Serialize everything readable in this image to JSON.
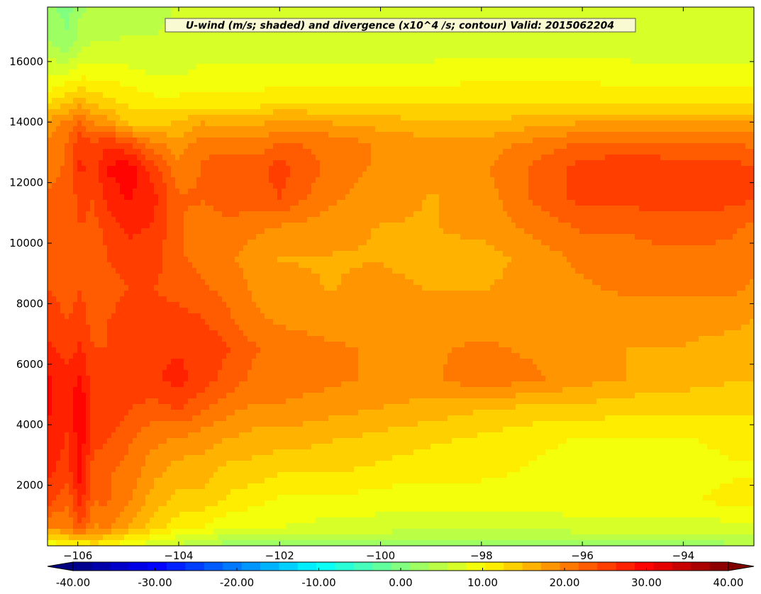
{
  "chart_data": {
    "type": "heatmap",
    "title": "U-wind (m/s; shaded) and divergence (x10^4 /s; contour) Valid: 2015062204",
    "x_range": [
      -106.6,
      -92.6
    ],
    "y_range": [
      0,
      17800
    ],
    "x_ticks": [
      -106,
      -104,
      -102,
      -100,
      -98,
      -96,
      -94
    ],
    "x_tick_labels": [
      "−106",
      "−104",
      "−102",
      "−100",
      "−98",
      "−96",
      "−94"
    ],
    "y_ticks": [
      2000,
      4000,
      6000,
      8000,
      10000,
      12000,
      14000,
      16000
    ],
    "y_tick_labels": [
      "2000",
      "4000",
      "6000",
      "8000",
      "10000",
      "12000",
      "14000",
      "16000"
    ],
    "colorbar": {
      "min": -40,
      "max": 40,
      "levels": 35,
      "extend": "both",
      "ticks": [
        -40,
        -30,
        -20,
        -10,
        0,
        10,
        20,
        30,
        40
      ],
      "tick_labels": [
        "-40.00",
        "-30.00",
        "-20.00",
        "-10.00",
        "0.00",
        "10.00",
        "20.00",
        "30.00",
        "40.00"
      ],
      "colormap": "jet"
    },
    "field_x": [
      -106.6,
      -106.2,
      -105.95,
      -105.7,
      -105.4,
      -105.0,
      -104.5,
      -104.0,
      -103.5,
      -103.0,
      -102.5,
      -102.0,
      -101.0,
      -100.0,
      -99.0,
      -98.0,
      -97.0,
      -96.0,
      -95.0,
      -94.0,
      -93.0,
      -92.6
    ],
    "field_y": [
      0,
      600,
      1500,
      2500,
      3500,
      4500,
      5500,
      6500,
      7500,
      8500,
      9500,
      10500,
      11500,
      12500,
      13300,
      14000,
      14700,
      15500,
      16500,
      17800
    ],
    "field_u": [
      [
        7,
        10,
        9,
        12,
        10,
        8,
        6,
        5,
        4,
        2,
        1,
        1,
        2,
        2,
        2,
        2,
        2,
        2,
        2,
        2,
        3,
        3
      ],
      [
        19,
        20,
        24,
        19,
        20,
        17,
        14,
        11,
        10,
        8,
        8,
        8,
        7,
        7,
        6,
        6,
        6,
        7,
        7,
        7,
        7,
        7
      ],
      [
        25,
        22,
        27,
        22,
        22,
        20,
        16,
        14,
        14,
        12,
        11,
        10,
        10,
        9,
        9,
        9,
        9,
        10,
        10,
        10,
        11,
        11
      ],
      [
        27,
        25,
        30,
        23,
        22,
        21,
        18,
        16,
        16,
        14,
        14,
        13,
        13,
        12,
        11,
        11,
        10,
        9,
        9,
        9,
        10,
        10
      ],
      [
        28,
        26,
        30,
        25,
        24,
        22,
        20,
        19,
        18,
        17,
        16,
        16,
        15,
        14,
        13,
        12,
        11,
        10,
        10,
        10,
        11,
        11
      ],
      [
        29,
        27,
        31,
        26,
        26,
        24,
        23,
        24,
        22,
        20,
        19,
        19,
        18,
        17,
        16,
        15,
        14,
        14,
        13,
        13,
        13,
        13
      ],
      [
        29,
        27,
        29,
        25,
        25,
        25,
        26,
        27,
        25,
        23,
        21,
        21,
        20,
        19,
        19,
        21,
        20,
        18,
        17,
        16,
        15,
        15
      ],
      [
        27,
        25,
        27,
        24,
        24,
        25,
        26,
        26,
        26,
        24,
        22,
        21,
        20,
        19,
        19,
        20,
        19,
        18,
        17,
        17,
        16,
        16
      ],
      [
        25,
        24,
        25,
        23,
        24,
        25,
        25,
        25,
        24,
        22,
        20,
        19,
        18,
        18,
        18,
        18,
        18,
        18,
        18,
        18,
        18,
        17
      ],
      [
        24,
        23,
        24,
        23,
        23,
        24,
        24,
        23,
        22,
        21,
        19,
        18,
        17,
        18,
        17,
        17,
        18,
        19,
        20,
        20,
        20,
        19
      ],
      [
        23,
        22,
        23,
        22,
        24,
        25,
        25,
        22,
        21,
        20,
        18,
        17,
        17,
        17,
        16,
        16,
        18,
        20,
        21,
        21,
        21,
        20
      ],
      [
        23,
        22,
        24,
        23,
        25,
        27,
        26,
        22,
        20,
        21,
        20,
        19,
        18,
        17,
        17,
        18,
        20,
        22,
        22,
        23,
        22,
        21
      ],
      [
        22,
        22,
        25,
        24,
        27,
        29,
        27,
        22,
        22,
        23,
        23,
        24,
        20,
        18,
        17,
        18,
        22,
        25,
        25,
        25,
        25,
        24
      ],
      [
        21,
        22,
        27,
        25,
        29,
        30,
        25,
        20,
        22,
        23,
        23,
        25,
        21,
        19,
        18,
        19,
        22,
        25,
        26,
        25,
        25,
        24
      ],
      [
        20,
        22,
        26,
        24,
        26,
        24,
        20,
        18,
        21,
        21,
        20,
        22,
        21,
        19,
        18,
        18,
        20,
        22,
        22,
        22,
        22,
        21
      ],
      [
        18,
        20,
        22,
        19,
        18,
        14,
        14,
        15,
        17,
        16,
        16,
        18,
        17,
        16,
        15,
        15,
        16,
        17,
        17,
        17,
        17,
        17
      ],
      [
        12,
        14,
        16,
        14,
        13,
        12,
        11,
        11,
        11,
        11,
        11,
        12,
        12,
        12,
        12,
        12,
        12,
        12,
        12,
        12,
        12,
        12
      ],
      [
        8,
        9,
        10,
        10,
        10,
        9,
        8,
        8,
        9,
        9,
        9,
        9,
        9,
        9,
        9,
        10,
        10,
        10,
        9,
        9,
        9,
        9
      ],
      [
        4,
        2,
        5,
        6,
        6,
        6,
        6,
        6,
        7,
        7,
        7,
        7,
        7,
        7,
        7,
        7,
        7,
        7,
        7,
        7,
        7,
        7
      ],
      [
        2,
        0,
        3,
        4,
        4,
        5,
        5,
        6,
        6,
        6,
        6,
        6,
        6,
        6,
        6,
        6,
        6,
        6,
        6,
        6,
        6,
        6
      ]
    ]
  }
}
